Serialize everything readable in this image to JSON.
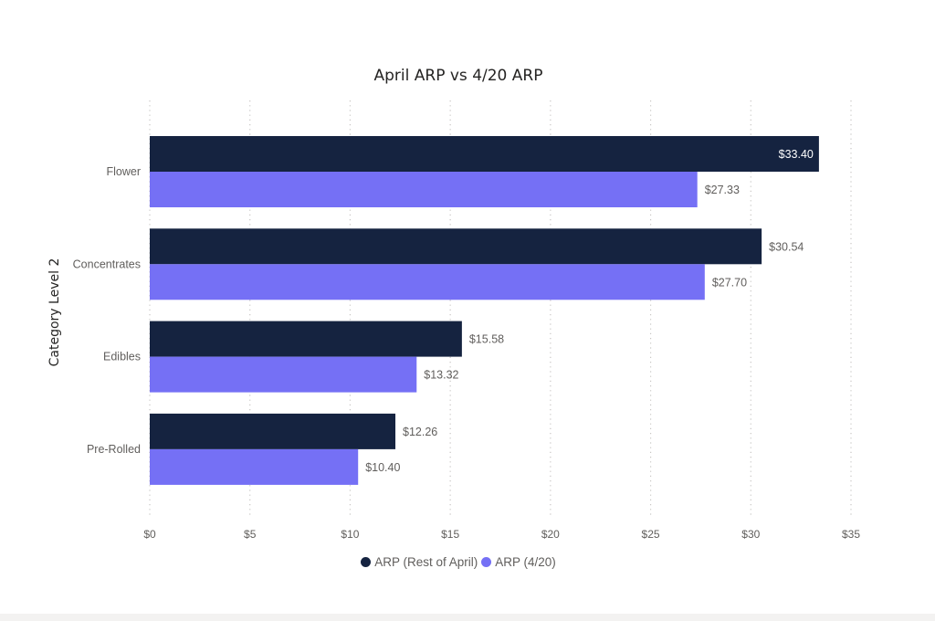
{
  "chart_data": {
    "type": "bar",
    "orientation": "horizontal",
    "title": "April ARP vs 4/20 ARP",
    "xlabel": "",
    "ylabel": "Category Level 2",
    "categories": [
      "Flower",
      "Concentrates",
      "Edibles",
      "Pre-Rolled"
    ],
    "series": [
      {
        "name": "ARP (Rest of April)",
        "color": "#152340",
        "values": [
          33.4,
          30.54,
          15.58,
          12.26
        ],
        "labels": [
          "$33.40",
          "$30.54",
          "$15.58",
          "$12.26"
        ]
      },
      {
        "name": "ARP (4/20)",
        "color": "#7570F5",
        "values": [
          27.33,
          27.7,
          13.32,
          10.4
        ],
        "labels": [
          "$27.33",
          "$27.70",
          "$13.32",
          "$10.40"
        ]
      }
    ],
    "xlim": [
      0,
      35
    ],
    "xticks": [
      0,
      5,
      10,
      15,
      20,
      25,
      30,
      35
    ],
    "xtick_labels": [
      "$0",
      "$5",
      "$10",
      "$15",
      "$20",
      "$25",
      "$30",
      "$35"
    ],
    "grid": "vertical dotted",
    "legend": "bottom-center"
  }
}
